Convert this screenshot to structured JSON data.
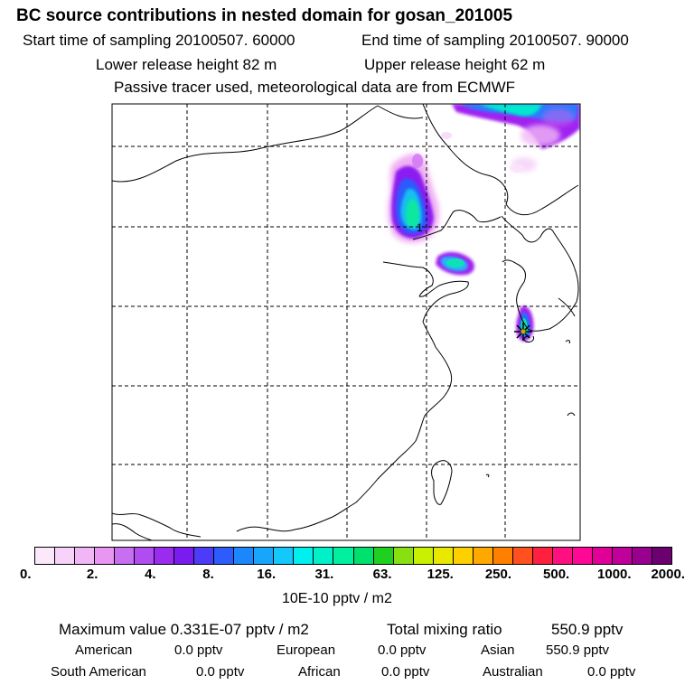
{
  "header": {
    "title": "BC  source contributions in nested domain for gosan_201005",
    "start_time": "Start time of sampling 20100507. 60000",
    "end_time": "End time of sampling 20100507. 90000",
    "lower_height": "Lower release height   82 m",
    "upper_height": "Upper release height   62 m",
    "tracer_note": "Passive tracer used, meteorological data are from ECMWF"
  },
  "map": {
    "receptor_marker_label": "1",
    "release_site_icon": "star-marker-icon"
  },
  "colorbar": {
    "colors": [
      "#fbe9fb",
      "#f7d2f9",
      "#f1b6f6",
      "#e996f3",
      "#c86ef0",
      "#b04cf0",
      "#9a2cf0",
      "#7a1cf0",
      "#4c3cf8",
      "#2c5cfc",
      "#1c86fc",
      "#18a6fc",
      "#14c8fc",
      "#00f0f0",
      "#00f0c8",
      "#00f0a0",
      "#00e06c",
      "#20d020",
      "#88e010",
      "#c8f000",
      "#e8e800",
      "#ffd000",
      "#ffa800",
      "#ff8000",
      "#ff5020",
      "#ff2040",
      "#ff1080",
      "#ff0898",
      "#e00098",
      "#c0009a",
      "#9a0090",
      "#6c0070"
    ],
    "ticks": [
      "0.",
      "2.",
      "4.",
      "8.",
      "16.",
      "31.",
      "63.",
      "125.",
      "250.",
      "500.",
      "1000.",
      "2000."
    ],
    "unit": "10E-10 pptv / m2"
  },
  "stats": {
    "max_value_label": "Maximum value  0.331E-07 pptv / m2",
    "total_label": "Total mixing ratio",
    "total_value": "550.9 pptv",
    "regions": [
      {
        "name": "American",
        "value": "0.0 pptv"
      },
      {
        "name": "European",
        "value": "0.0 pptv"
      },
      {
        "name": "Asian",
        "value": "550.9 pptv"
      },
      {
        "name": "South American",
        "value": "0.0 pptv"
      },
      {
        "name": "African",
        "value": "0.0 pptv"
      },
      {
        "name": "Australian",
        "value": "0.0 pptv"
      }
    ]
  }
}
